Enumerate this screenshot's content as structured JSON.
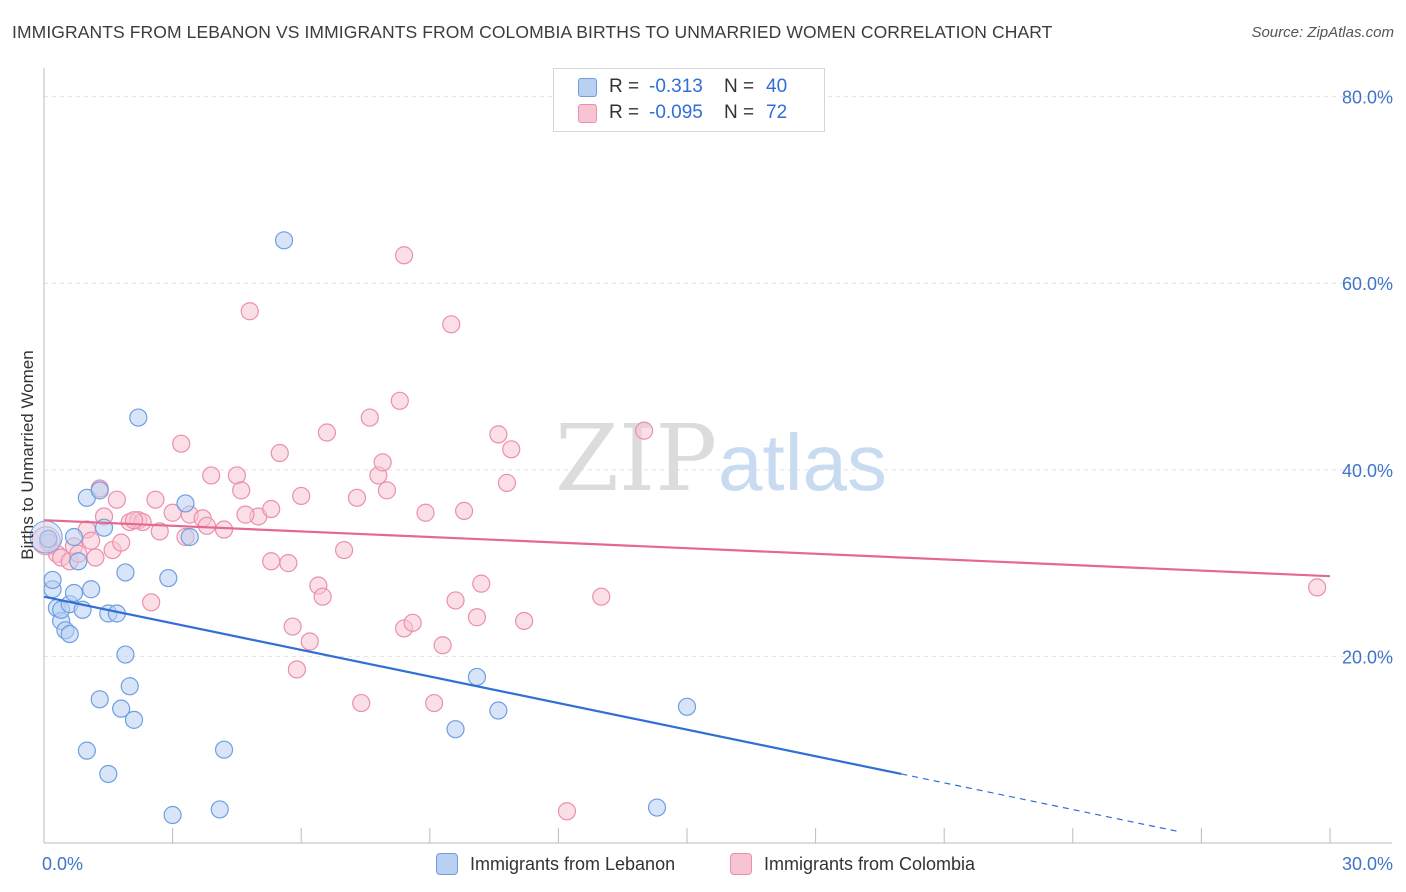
{
  "header": {
    "title": "IMMIGRANTS FROM LEBANON VS IMMIGRANTS FROM COLOMBIA BIRTHS TO UNMARRIED WOMEN CORRELATION CHART",
    "source": "Source: ZipAtlas.com"
  },
  "watermark": {
    "zip": "ZIP",
    "atlas": "atlas"
  },
  "legend": {
    "lebanon": {
      "r_label": "R =",
      "r_value": "-0.313",
      "n_label": "N =",
      "n_value": "40"
    },
    "colombia": {
      "r_label": "R =",
      "r_value": "-0.095",
      "n_label": "N =",
      "n_value": "72"
    }
  },
  "colors": {
    "lebanon": "#6f9fe0",
    "lebanon_fill": "#b8d0f2",
    "lebanon_line": "#2f6fd6",
    "colombia": "#ec8fab",
    "colombia_fill": "#f7c4d3",
    "colombia_line": "#e4698f",
    "axis_text": "#3f74c9",
    "grid": "#e2e2e2"
  },
  "chart_data": {
    "type": "scatter",
    "title": "IMMIGRANTS FROM LEBANON VS IMMIGRANTS FROM COLOMBIA BIRTHS TO UNMARRIED WOMEN CORRELATION CHART",
    "xlabel": "",
    "ylabel": "Births to Unmarried Women",
    "xlim": [
      0,
      30
    ],
    "ylim": [
      0,
      82
    ],
    "x_tick_labels": [
      "0.0%",
      "30.0%"
    ],
    "y_ticks": [
      20,
      40,
      60,
      80
    ],
    "y_tick_labels": [
      "20.0%",
      "40.0%",
      "60.0%",
      "80.0%"
    ],
    "grid": true,
    "legend_position": "top-center",
    "series": [
      {
        "name": "Immigrants from Lebanon",
        "color": "#6f9fe0",
        "points": [
          [
            0.2,
            27.2
          ],
          [
            0.2,
            28.2
          ],
          [
            0.3,
            25.2
          ],
          [
            0.4,
            23.8
          ],
          [
            0.4,
            25.0
          ],
          [
            0.5,
            22.8
          ],
          [
            0.6,
            25.6
          ],
          [
            0.6,
            22.4
          ],
          [
            0.7,
            26.8
          ],
          [
            0.7,
            32.8
          ],
          [
            0.8,
            30.2
          ],
          [
            0.9,
            25.0
          ],
          [
            1.0,
            37.0
          ],
          [
            1.1,
            27.2
          ],
          [
            1.3,
            37.8
          ],
          [
            1.4,
            33.8
          ],
          [
            1.5,
            24.6
          ],
          [
            1.7,
            24.6
          ],
          [
            1.9,
            29.0
          ],
          [
            1.9,
            20.2
          ],
          [
            2.0,
            16.8
          ],
          [
            2.2,
            45.6
          ],
          [
            2.9,
            28.4
          ],
          [
            3.3,
            36.4
          ],
          [
            3.4,
            32.8
          ],
          [
            1.3,
            15.4
          ],
          [
            1.8,
            14.4
          ],
          [
            2.1,
            13.2
          ],
          [
            1.0,
            9.9
          ],
          [
            1.5,
            7.4
          ],
          [
            4.2,
            10.0
          ],
          [
            4.1,
            3.6
          ],
          [
            3.0,
            3.0
          ],
          [
            5.6,
            64.6
          ],
          [
            10.1,
            17.8
          ],
          [
            9.6,
            12.2
          ],
          [
            10.6,
            14.2
          ],
          [
            15.0,
            14.6
          ],
          [
            14.3,
            3.8
          ],
          [
            0.1,
            32.6
          ]
        ]
      },
      {
        "name": "Immigrants from Colombia",
        "color": "#ec8fab",
        "points": [
          [
            0.1,
            32.2
          ],
          [
            0.3,
            31.0
          ],
          [
            0.4,
            30.6
          ],
          [
            0.6,
            30.2
          ],
          [
            0.7,
            31.8
          ],
          [
            0.8,
            31.0
          ],
          [
            1.0,
            33.6
          ],
          [
            1.1,
            32.4
          ],
          [
            1.3,
            38.0
          ],
          [
            1.4,
            35.0
          ],
          [
            1.6,
            31.4
          ],
          [
            1.7,
            36.8
          ],
          [
            1.8,
            32.2
          ],
          [
            2.0,
            34.4
          ],
          [
            2.2,
            34.6
          ],
          [
            2.3,
            34.4
          ],
          [
            2.5,
            25.8
          ],
          [
            2.6,
            36.8
          ],
          [
            2.7,
            33.4
          ],
          [
            3.0,
            35.4
          ],
          [
            3.2,
            42.8
          ],
          [
            3.3,
            32.8
          ],
          [
            3.4,
            35.2
          ],
          [
            3.7,
            34.8
          ],
          [
            3.8,
            34.0
          ],
          [
            3.9,
            39.4
          ],
          [
            4.2,
            33.6
          ],
          [
            4.5,
            39.4
          ],
          [
            4.6,
            37.8
          ],
          [
            4.8,
            57.0
          ],
          [
            5.0,
            35.0
          ],
          [
            5.3,
            30.2
          ],
          [
            5.3,
            35.8
          ],
          [
            5.5,
            41.8
          ],
          [
            5.7,
            30.0
          ],
          [
            5.8,
            23.2
          ],
          [
            5.9,
            18.6
          ],
          [
            6.0,
            37.2
          ],
          [
            6.2,
            21.6
          ],
          [
            6.4,
            27.6
          ],
          [
            6.5,
            26.4
          ],
          [
            6.6,
            44.0
          ],
          [
            7.0,
            31.4
          ],
          [
            7.3,
            37.0
          ],
          [
            7.4,
            15.0
          ],
          [
            7.6,
            45.6
          ],
          [
            7.8,
            39.4
          ],
          [
            7.9,
            40.8
          ],
          [
            8.0,
            37.8
          ],
          [
            8.3,
            47.4
          ],
          [
            8.4,
            63.0
          ],
          [
            8.4,
            23.0
          ],
          [
            8.6,
            23.6
          ],
          [
            8.9,
            35.4
          ],
          [
            9.1,
            15.0
          ],
          [
            9.3,
            21.2
          ],
          [
            9.5,
            55.6
          ],
          [
            9.6,
            26.0
          ],
          [
            9.8,
            35.6
          ],
          [
            10.1,
            24.2
          ],
          [
            10.2,
            27.8
          ],
          [
            10.6,
            43.8
          ],
          [
            10.8,
            38.6
          ],
          [
            10.9,
            42.2
          ],
          [
            11.2,
            23.8
          ],
          [
            12.2,
            3.4
          ],
          [
            13.0,
            26.4
          ],
          [
            14.0,
            44.2
          ],
          [
            29.7,
            27.4
          ],
          [
            2.1,
            34.6
          ],
          [
            4.7,
            35.2
          ],
          [
            1.2,
            30.6
          ]
        ]
      }
    ],
    "trend_lines": [
      {
        "series": "Immigrants from Lebanon",
        "solid": [
          [
            0,
            26.4
          ],
          [
            20,
            7.4
          ]
        ],
        "dashed": [
          [
            20,
            7.4
          ],
          [
            26.5,
            1.2
          ]
        ]
      },
      {
        "series": "Immigrants from Colombia",
        "solid": [
          [
            0,
            34.6
          ],
          [
            30,
            28.6
          ]
        ]
      }
    ]
  },
  "bottom_legend": {
    "lebanon_label": "Immigrants from Lebanon",
    "colombia_label": "Immigrants from Colombia"
  }
}
